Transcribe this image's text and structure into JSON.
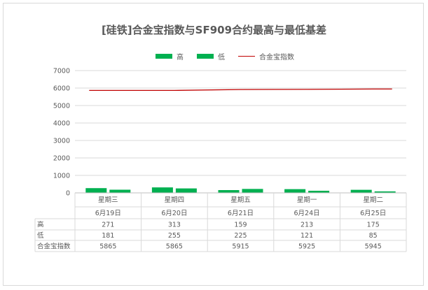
{
  "chart_data": {
    "type": "bar",
    "title": "[硅铁]合金宝指数与SF909合约最高与最低基差",
    "categories": [
      "星期三",
      "星期四",
      "星期五",
      "星期一",
      "星期二"
    ],
    "dates": [
      "6月19日",
      "6月20日",
      "6月21日",
      "6月24日",
      "6月25日"
    ],
    "series": [
      {
        "name": "高",
        "kind": "bar",
        "color": "#00b050",
        "values": [
          271,
          313,
          159,
          213,
          175
        ]
      },
      {
        "name": "低",
        "kind": "bar",
        "color": "#00b050",
        "values": [
          181,
          255,
          225,
          121,
          85
        ]
      },
      {
        "name": "合金宝指数",
        "kind": "line",
        "color": "#c00000",
        "values": [
          5865,
          5865,
          5915,
          5925,
          5945
        ]
      }
    ],
    "ylim": [
      0,
      7000
    ],
    "yticks": [
      0,
      1000,
      2000,
      3000,
      4000,
      5000,
      6000,
      7000
    ],
    "grid": true,
    "legend_position": "top",
    "data_table": true
  }
}
